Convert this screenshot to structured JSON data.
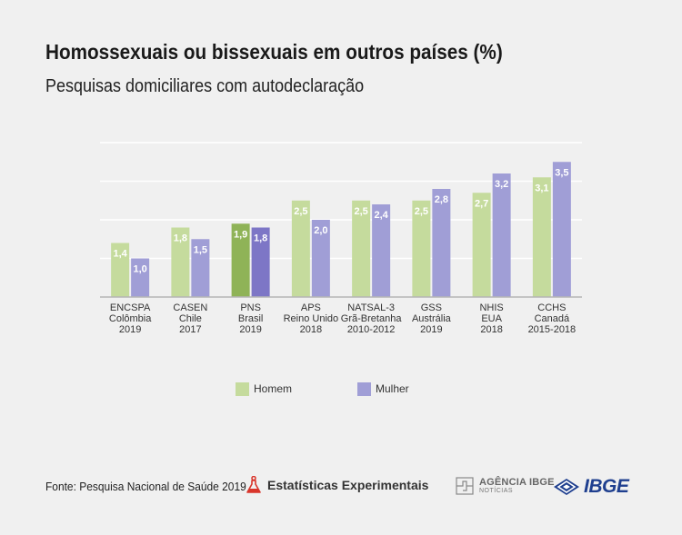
{
  "header": {
    "title": "Homossexuais ou bissexuais em outros países (%)",
    "subtitle": "Pesquisas domiciliares com autodeclaração"
  },
  "footer": {
    "source": "Fonte: Pesquisa Nacional de Saúde 2019",
    "experimental_label": "Estatísticas Experimentais",
    "agency_label": "AGÊNCIA IBGE",
    "agency_sub": "NOTÍCIAS",
    "ibge_logo_text": "IBGE"
  },
  "colors": {
    "homem": "#c5db9d",
    "mulher": "#a09ed6",
    "homem_highlight": "#8fb357",
    "mulher_highlight": "#7d76c6",
    "grid": "#ffffff",
    "axis": "#b5b5b5"
  },
  "chart_data": {
    "type": "bar",
    "ylim": [
      0,
      4
    ],
    "gridlines": [
      1,
      2,
      3,
      4
    ],
    "highlight_index": 2,
    "legend_position": "bottom",
    "categories": [
      [
        "ENCSPA",
        "Colômbia",
        "2019"
      ],
      [
        "CASEN",
        "Chile",
        "2017"
      ],
      [
        "PNS",
        "Brasil",
        "2019"
      ],
      [
        "APS",
        "Reino Unido",
        "2018"
      ],
      [
        "NATSAL-3",
        "Grã-Bretanha",
        "2010-2012"
      ],
      [
        "GSS",
        "Austrália",
        "2019"
      ],
      [
        "NHIS",
        "EUA",
        "2018"
      ],
      [
        "CCHS",
        "Canadá",
        "2015-2018"
      ]
    ],
    "series": [
      {
        "name": "Homem",
        "values": [
          1.4,
          1.8,
          1.9,
          2.5,
          2.5,
          2.5,
          2.7,
          3.1
        ],
        "labels": [
          "1,4",
          "1,8",
          "1,9",
          "2,5",
          "2,5",
          "2,5",
          "2,7",
          "3,1"
        ]
      },
      {
        "name": "Mulher",
        "values": [
          1.0,
          1.5,
          1.8,
          2.0,
          2.4,
          2.8,
          3.2,
          3.5
        ],
        "labels": [
          "1,0",
          "1,5",
          "1,8",
          "2,0",
          "2,4",
          "2,8",
          "3,2",
          "3,5"
        ]
      }
    ]
  }
}
